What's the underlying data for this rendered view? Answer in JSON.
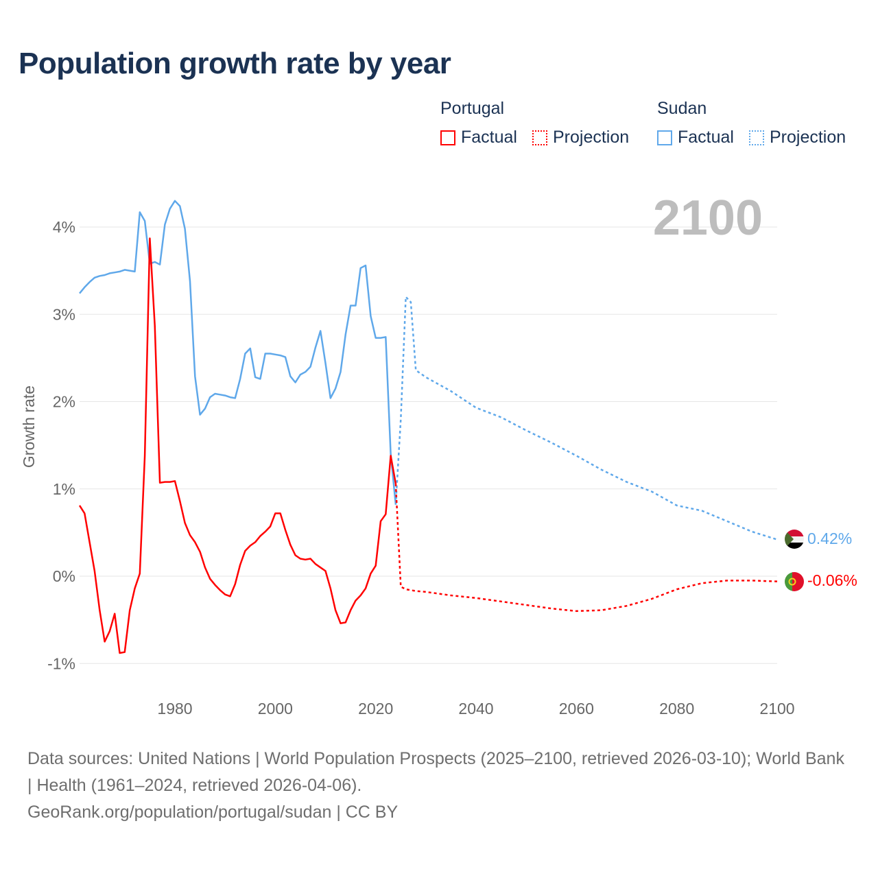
{
  "title": "Population growth rate by year",
  "legend": {
    "groups": [
      {
        "name": "Portugal",
        "factual": "Factual",
        "projection": "Projection",
        "color": "#ff0000"
      },
      {
        "name": "Sudan",
        "factual": "Factual",
        "projection": "Projection",
        "color": "#5fa8ea"
      }
    ]
  },
  "footer": {
    "sources": "Data sources: United Nations | World Population Prospects (2025–2100, retrieved 2026-03-10); World Bank | Health (1961–2024, retrieved 2026-04-06).",
    "credit": "GeoRank.org/population/portugal/sudan | CC BY"
  },
  "chart_data": {
    "type": "line",
    "title": "Population growth rate by year",
    "ylabel": "Growth rate",
    "xlabel": "",
    "year_label": "2100",
    "xlim": [
      1961,
      2100
    ],
    "ylim": [
      -1.3,
      4.6
    ],
    "x_ticks": [
      1980,
      2000,
      2020,
      2040,
      2060,
      2080,
      2100
    ],
    "y_ticks": [
      -1,
      0,
      1,
      2,
      3,
      4
    ],
    "y_tick_labels": [
      "-1%",
      "0%",
      "1%",
      "2%",
      "3%",
      "4%"
    ],
    "grid": true,
    "series": [
      {
        "name": "Sudan",
        "color": "#5fa8ea",
        "end_label": "0.42%",
        "factual": {
          "x": [
            1961,
            1962,
            1963,
            1964,
            1965,
            1966,
            1967,
            1968,
            1969,
            1970,
            1971,
            1972,
            1973,
            1974,
            1975,
            1976,
            1977,
            1978,
            1979,
            1980,
            1981,
            1982,
            1983,
            1984,
            1985,
            1986,
            1987,
            1988,
            1989,
            1990,
            1991,
            1992,
            1993,
            1994,
            1995,
            1996,
            1997,
            1998,
            1999,
            2000,
            2001,
            2002,
            2003,
            2004,
            2005,
            2006,
            2007,
            2008,
            2009,
            2010,
            2011,
            2012,
            2013,
            2014,
            2015,
            2016,
            2017,
            2018,
            2019,
            2020,
            2021,
            2022,
            2023,
            2024
          ],
          "y": [
            3.24,
            3.31,
            3.37,
            3.42,
            3.44,
            3.45,
            3.47,
            3.48,
            3.49,
            3.51,
            3.5,
            3.49,
            4.17,
            4.07,
            3.58,
            3.6,
            3.57,
            4.03,
            4.21,
            4.3,
            4.24,
            3.98,
            3.38,
            2.29,
            1.85,
            1.92,
            2.05,
            2.09,
            2.08,
            2.07,
            2.05,
            2.04,
            2.26,
            2.55,
            2.61,
            2.28,
            2.26,
            2.55,
            2.55,
            2.54,
            2.53,
            2.51,
            2.29,
            2.22,
            2.31,
            2.34,
            2.4,
            2.62,
            2.81,
            2.44,
            2.04,
            2.15,
            2.34,
            2.77,
            3.1,
            3.1,
            3.53,
            3.56,
            2.98,
            2.73,
            2.73,
            2.74,
            1.4,
            0.82
          ]
        },
        "projection": {
          "x": [
            2024,
            2025,
            2026,
            2027,
            2028,
            2030,
            2035,
            2040,
            2045,
            2050,
            2055,
            2060,
            2065,
            2070,
            2075,
            2080,
            2085,
            2090,
            2095,
            2100
          ],
          "y": [
            0.82,
            1.8,
            3.2,
            3.14,
            2.36,
            2.28,
            2.12,
            1.93,
            1.82,
            1.67,
            1.53,
            1.38,
            1.22,
            1.08,
            0.97,
            0.81,
            0.75,
            0.63,
            0.51,
            0.42
          ]
        }
      },
      {
        "name": "Portugal",
        "color": "#ff0000",
        "end_label": "-0.06%",
        "factual": {
          "x": [
            1961,
            1962,
            1963,
            1964,
            1965,
            1966,
            1967,
            1968,
            1969,
            1970,
            1971,
            1972,
            1973,
            1974,
            1975,
            1976,
            1977,
            1978,
            1979,
            1980,
            1981,
            1982,
            1983,
            1984,
            1985,
            1986,
            1987,
            1988,
            1989,
            1990,
            1991,
            1992,
            1993,
            1994,
            1995,
            1996,
            1997,
            1998,
            1999,
            2000,
            2001,
            2002,
            2003,
            2004,
            2005,
            2006,
            2007,
            2008,
            2009,
            2010,
            2011,
            2012,
            2013,
            2014,
            2015,
            2016,
            2017,
            2018,
            2019,
            2020,
            2021,
            2022,
            2023,
            2024
          ],
          "y": [
            0.81,
            0.72,
            0.39,
            0.06,
            -0.39,
            -0.75,
            -0.63,
            -0.43,
            -0.88,
            -0.87,
            -0.39,
            -0.14,
            0.03,
            1.38,
            3.87,
            2.87,
            1.07,
            1.08,
            1.08,
            1.09,
            0.86,
            0.61,
            0.47,
            0.39,
            0.28,
            0.1,
            -0.03,
            -0.1,
            -0.16,
            -0.21,
            -0.23,
            -0.09,
            0.13,
            0.29,
            0.35,
            0.39,
            0.46,
            0.51,
            0.57,
            0.72,
            0.72,
            0.53,
            0.36,
            0.24,
            0.2,
            0.19,
            0.2,
            0.14,
            0.1,
            0.06,
            -0.14,
            -0.39,
            -0.54,
            -0.53,
            -0.39,
            -0.28,
            -0.22,
            -0.14,
            0.03,
            0.12,
            0.63,
            0.71,
            1.38,
            1.06
          ]
        },
        "projection": {
          "x": [
            2024,
            2025,
            2026,
            2028,
            2030,
            2035,
            2040,
            2045,
            2050,
            2055,
            2060,
            2065,
            2070,
            2075,
            2080,
            2085,
            2090,
            2095,
            2100
          ],
          "y": [
            1.06,
            -0.12,
            -0.15,
            -0.17,
            -0.18,
            -0.22,
            -0.25,
            -0.29,
            -0.33,
            -0.37,
            -0.4,
            -0.39,
            -0.34,
            -0.26,
            -0.15,
            -0.08,
            -0.05,
            -0.05,
            -0.06
          ]
        }
      }
    ]
  }
}
